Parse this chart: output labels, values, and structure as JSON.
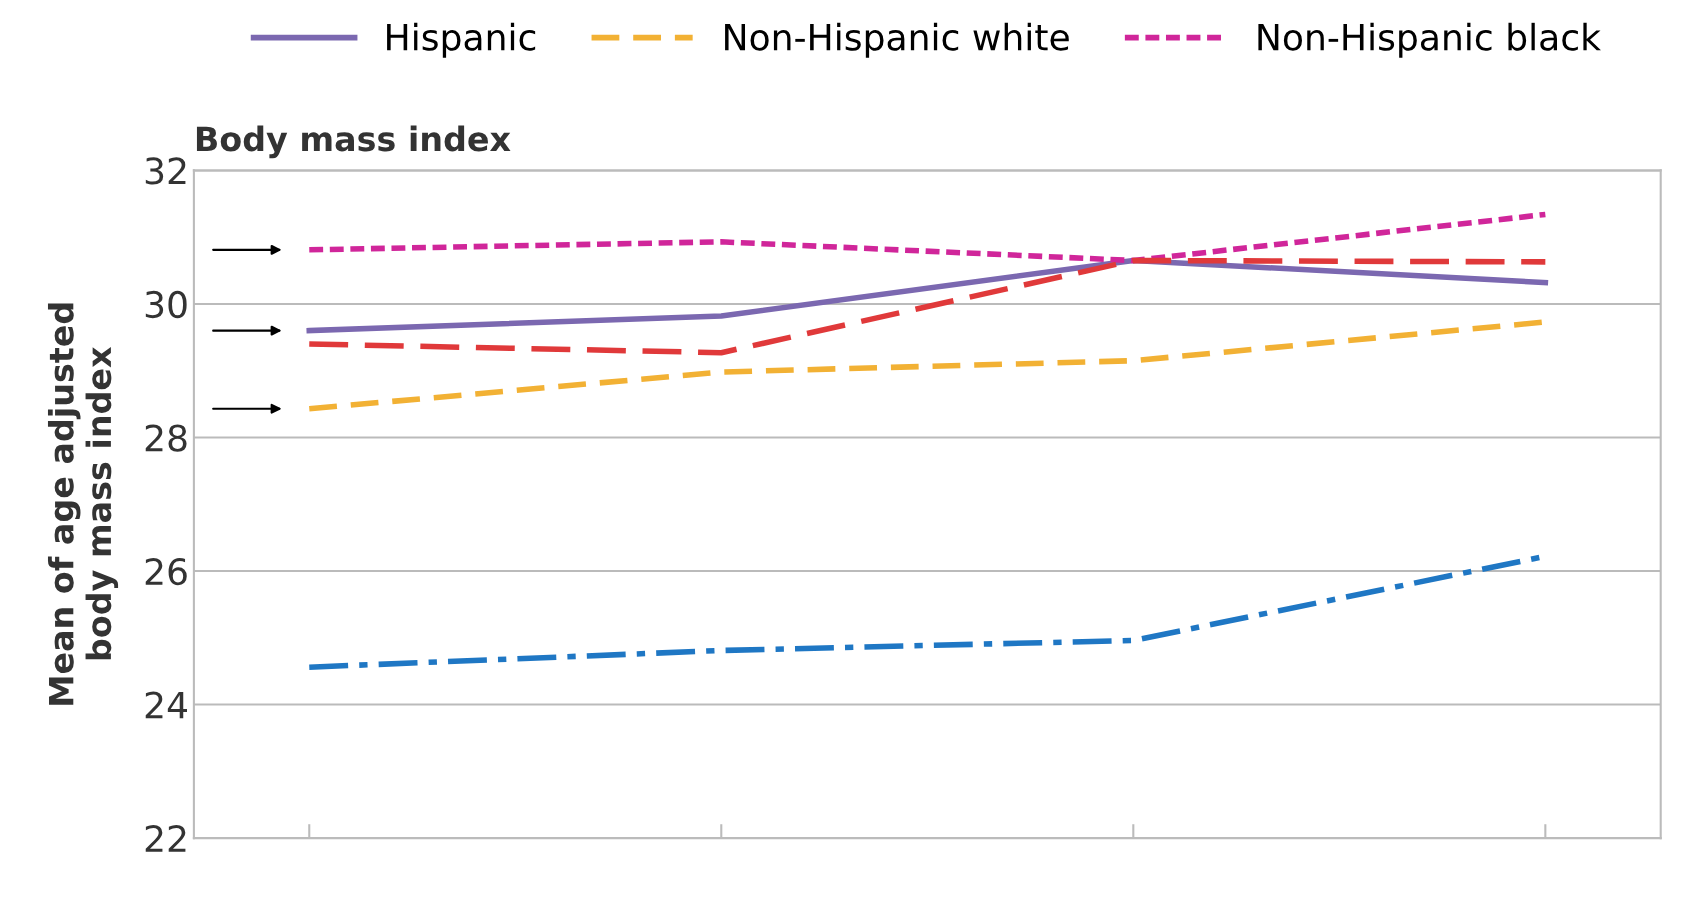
{
  "chart_data": {
    "type": "line",
    "title": "Body mass index",
    "ylabel": "Mean of age adjusted\nbody mass index",
    "categories": [
      null,
      null,
      null,
      null
    ],
    "series": [
      {
        "name": "Hispanic",
        "color": "#7b68b0",
        "line_style": "solid",
        "values": [
          29.6,
          29.82,
          30.65,
          30.32
        ]
      },
      {
        "name": "Non-Hispanic white",
        "color": "#f2b134",
        "line_style": "dashed",
        "values": [
          28.43,
          28.98,
          29.15,
          29.73
        ]
      },
      {
        "name": "Non-Hispanic black",
        "color": "#d0269a",
        "line_style": "dotted",
        "values": [
          30.81,
          30.93,
          30.65,
          31.34
        ]
      },
      {
        "color": "#e0393a",
        "line_style": "longdash",
        "values": [
          29.4,
          29.27,
          30.65,
          30.63
        ]
      },
      {
        "color": "#1f77c4",
        "line_style": "dashdot",
        "values": [
          24.56,
          24.81,
          24.96,
          26.22
        ]
      }
    ],
    "ylim": [
      22,
      32
    ],
    "yticks": [
      22,
      24,
      26,
      28,
      30,
      32
    ],
    "grid": "y",
    "legend": "top",
    "tick_labels": "y",
    "marker": "none"
  }
}
